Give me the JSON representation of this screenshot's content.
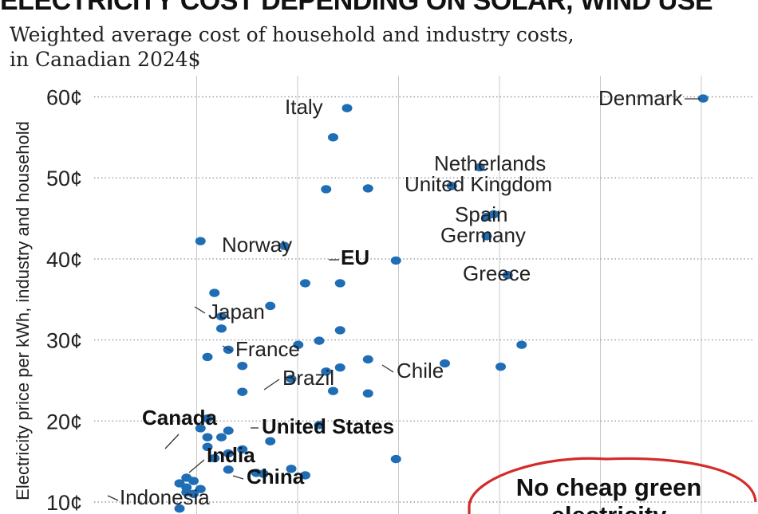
{
  "title": "ELECTRICITY COST DEPENDING ON SOLAR, WIND USE",
  "subtitle_line1": "Weighted average cost of household and industry costs,",
  "subtitle_line2": "in Canadian 2024$",
  "annotation": {
    "line1": "No cheap green",
    "line2": "electricity",
    "color": "#d42a2a"
  },
  "colors": {
    "points": "#1f6db5",
    "grid": "#9a9a9a",
    "text": "#222222"
  },
  "chart_data": {
    "type": "scatter",
    "ylabel": "Electricity price per kWh, industry and household",
    "ylim": [
      9,
      62
    ],
    "yticks": [
      {
        "value": 10,
        "label": "10¢"
      },
      {
        "value": 20,
        "label": "20¢"
      },
      {
        "value": 30,
        "label": "30¢"
      },
      {
        "value": 40,
        "label": "40¢"
      },
      {
        "value": 50,
        "label": "50¢"
      },
      {
        "value": 60,
        "label": "60¢"
      }
    ],
    "x_gridlines": 6,
    "grid": true,
    "labeled_points": [
      {
        "label": "Denmark",
        "x": 0.87,
        "y": 59.8,
        "bold": false
      },
      {
        "label": "Italy",
        "x": 0.36,
        "y": 58.6,
        "bold": false
      },
      {
        "label": "Netherlands",
        "x": 0.55,
        "y": 51.3,
        "bold": false
      },
      {
        "label": "United Kingdom",
        "x": 0.51,
        "y": 49.0,
        "bold": false
      },
      {
        "label": "Spain",
        "x": 0.57,
        "y": 45.5,
        "bold": false
      },
      {
        "label": "Germany",
        "x": 0.56,
        "y": 42.8,
        "bold": false
      },
      {
        "label": "Norway",
        "x": 0.27,
        "y": 41.6,
        "bold": false
      },
      {
        "label": "EU",
        "x": 0.43,
        "y": 39.8,
        "bold": true
      },
      {
        "label": "Greece",
        "x": 0.59,
        "y": 38.0,
        "bold": false
      },
      {
        "label": "Japan",
        "x": 0.25,
        "y": 34.2,
        "bold": false
      },
      {
        "label": "France",
        "x": 0.29,
        "y": 29.4,
        "bold": false
      },
      {
        "label": "Chile",
        "x": 0.5,
        "y": 27.1,
        "bold": false
      },
      {
        "label": "Brazil",
        "x": 0.34,
        "y": 23.7,
        "bold": false
      },
      {
        "label": "Canada",
        "x": 0.21,
        "y": 16.5,
        "bold": true
      },
      {
        "label": "United States",
        "x": 0.32,
        "y": 19.5,
        "bold": true
      },
      {
        "label": "India",
        "x": 0.24,
        "y": 13.5,
        "bold": true
      },
      {
        "label": "China",
        "x": 0.3,
        "y": 13.3,
        "bold": true
      },
      {
        "label": "Indonesia",
        "x": 0.13,
        "y": 11.2,
        "bold": false
      }
    ],
    "other_points": [
      [
        0.34,
        55.0
      ],
      [
        0.33,
        48.6
      ],
      [
        0.39,
        48.7
      ],
      [
        0.56,
        45.2
      ],
      [
        0.15,
        42.2
      ],
      [
        0.3,
        37.0
      ],
      [
        0.35,
        37.0
      ],
      [
        0.17,
        35.8
      ],
      [
        0.18,
        32.9
      ],
      [
        0.18,
        31.4
      ],
      [
        0.35,
        31.2
      ],
      [
        0.32,
        29.9
      ],
      [
        0.61,
        29.4
      ],
      [
        0.19,
        28.8
      ],
      [
        0.16,
        27.9
      ],
      [
        0.39,
        27.6
      ],
      [
        0.21,
        26.8
      ],
      [
        0.35,
        26.6
      ],
      [
        0.33,
        26.1
      ],
      [
        0.58,
        26.7
      ],
      [
        0.28,
        25.2
      ],
      [
        0.21,
        23.6
      ],
      [
        0.39,
        23.4
      ],
      [
        0.16,
        20.3
      ],
      [
        0.15,
        19.1
      ],
      [
        0.19,
        18.8
      ],
      [
        0.16,
        18.0
      ],
      [
        0.18,
        18.0
      ],
      [
        0.25,
        17.5
      ],
      [
        0.16,
        16.8
      ],
      [
        0.19,
        16.0
      ],
      [
        0.17,
        15.4
      ],
      [
        0.43,
        15.3
      ],
      [
        0.19,
        14.0
      ],
      [
        0.28,
        14.1
      ],
      [
        0.23,
        13.6
      ],
      [
        0.13,
        13.0
      ],
      [
        0.14,
        12.6
      ],
      [
        0.12,
        12.3
      ],
      [
        0.15,
        11.6
      ],
      [
        0.13,
        11.8
      ],
      [
        0.14,
        11.0
      ],
      [
        0.12,
        9.2
      ]
    ]
  }
}
